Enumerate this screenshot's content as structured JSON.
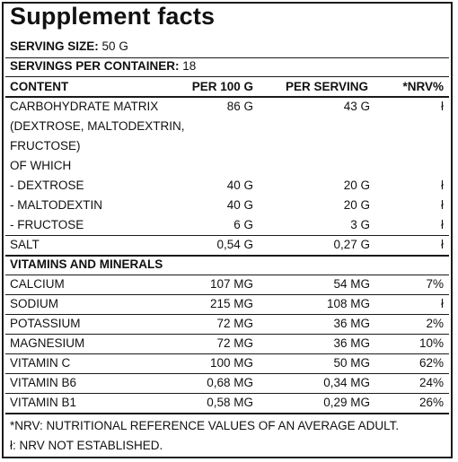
{
  "title": "Supplement facts",
  "serving_size_label": "SERVING SIZE:",
  "serving_size_value": "50 G",
  "servings_label": "SERVINGS PER CONTAINER:",
  "servings_value": "18",
  "header": {
    "content": "CONTENT",
    "per100": "PER 100 G",
    "perserving": "PER SERVING",
    "nrv": "*NRV%"
  },
  "carb": {
    "line1": "CARBOHYDRATE MATRIX",
    "line2": "(DEXTROSE, MALTODEXTRIN,",
    "line3": "FRUCTOSE)",
    "line4": "OF WHICH",
    "per100": "86 G",
    "perserving": "43 G",
    "nrv": "ł"
  },
  "subrows": [
    {
      "name": "-  DEXTROSE",
      "per100": "40 G",
      "perserving": "20 G",
      "nrv": "ł"
    },
    {
      "name": "-  MALTODEXTIN",
      "per100": "40 G",
      "perserving": "20 G",
      "nrv": "ł"
    },
    {
      "name": "-  FRUCTOSE",
      "per100": "6 G",
      "perserving": "3 G",
      "nrv": "ł"
    }
  ],
  "salt": {
    "name": "SALT",
    "per100": "0,54 G",
    "perserving": "0,27 G",
    "nrv": "ł"
  },
  "vitamins_heading": "VITAMINS AND MINERALS",
  "minerals": [
    {
      "name": "CALCIUM",
      "per100": "107 MG",
      "perserving": "54 MG",
      "nrv": "7%"
    },
    {
      "name": "SODIUM",
      "per100": "215 MG",
      "perserving": "108 MG",
      "nrv": "ł"
    },
    {
      "name": "POTASSIUM",
      "per100": "72 MG",
      "perserving": "36 MG",
      "nrv": "2%"
    },
    {
      "name": "MAGNESIUM",
      "per100": "72 MG",
      "perserving": "36 MG",
      "nrv": "10%"
    },
    {
      "name": "VITAMIN C",
      "per100": "100 MG",
      "perserving": "50 MG",
      "nrv": "62%"
    },
    {
      "name": "VITAMIN B6",
      "per100": "0,68 MG",
      "perserving": "0,34 MG",
      "nrv": "24%"
    },
    {
      "name": "VITAMIN B1",
      "per100": "0,58 MG",
      "perserving": "0,29 MG",
      "nrv": "26%"
    }
  ],
  "footnote1": "*NRV: NUTRITIONAL REFERENCE VALUES OF AN AVERAGE ADULT.",
  "footnote2": "ł: NRV NOT ESTABLISHED."
}
